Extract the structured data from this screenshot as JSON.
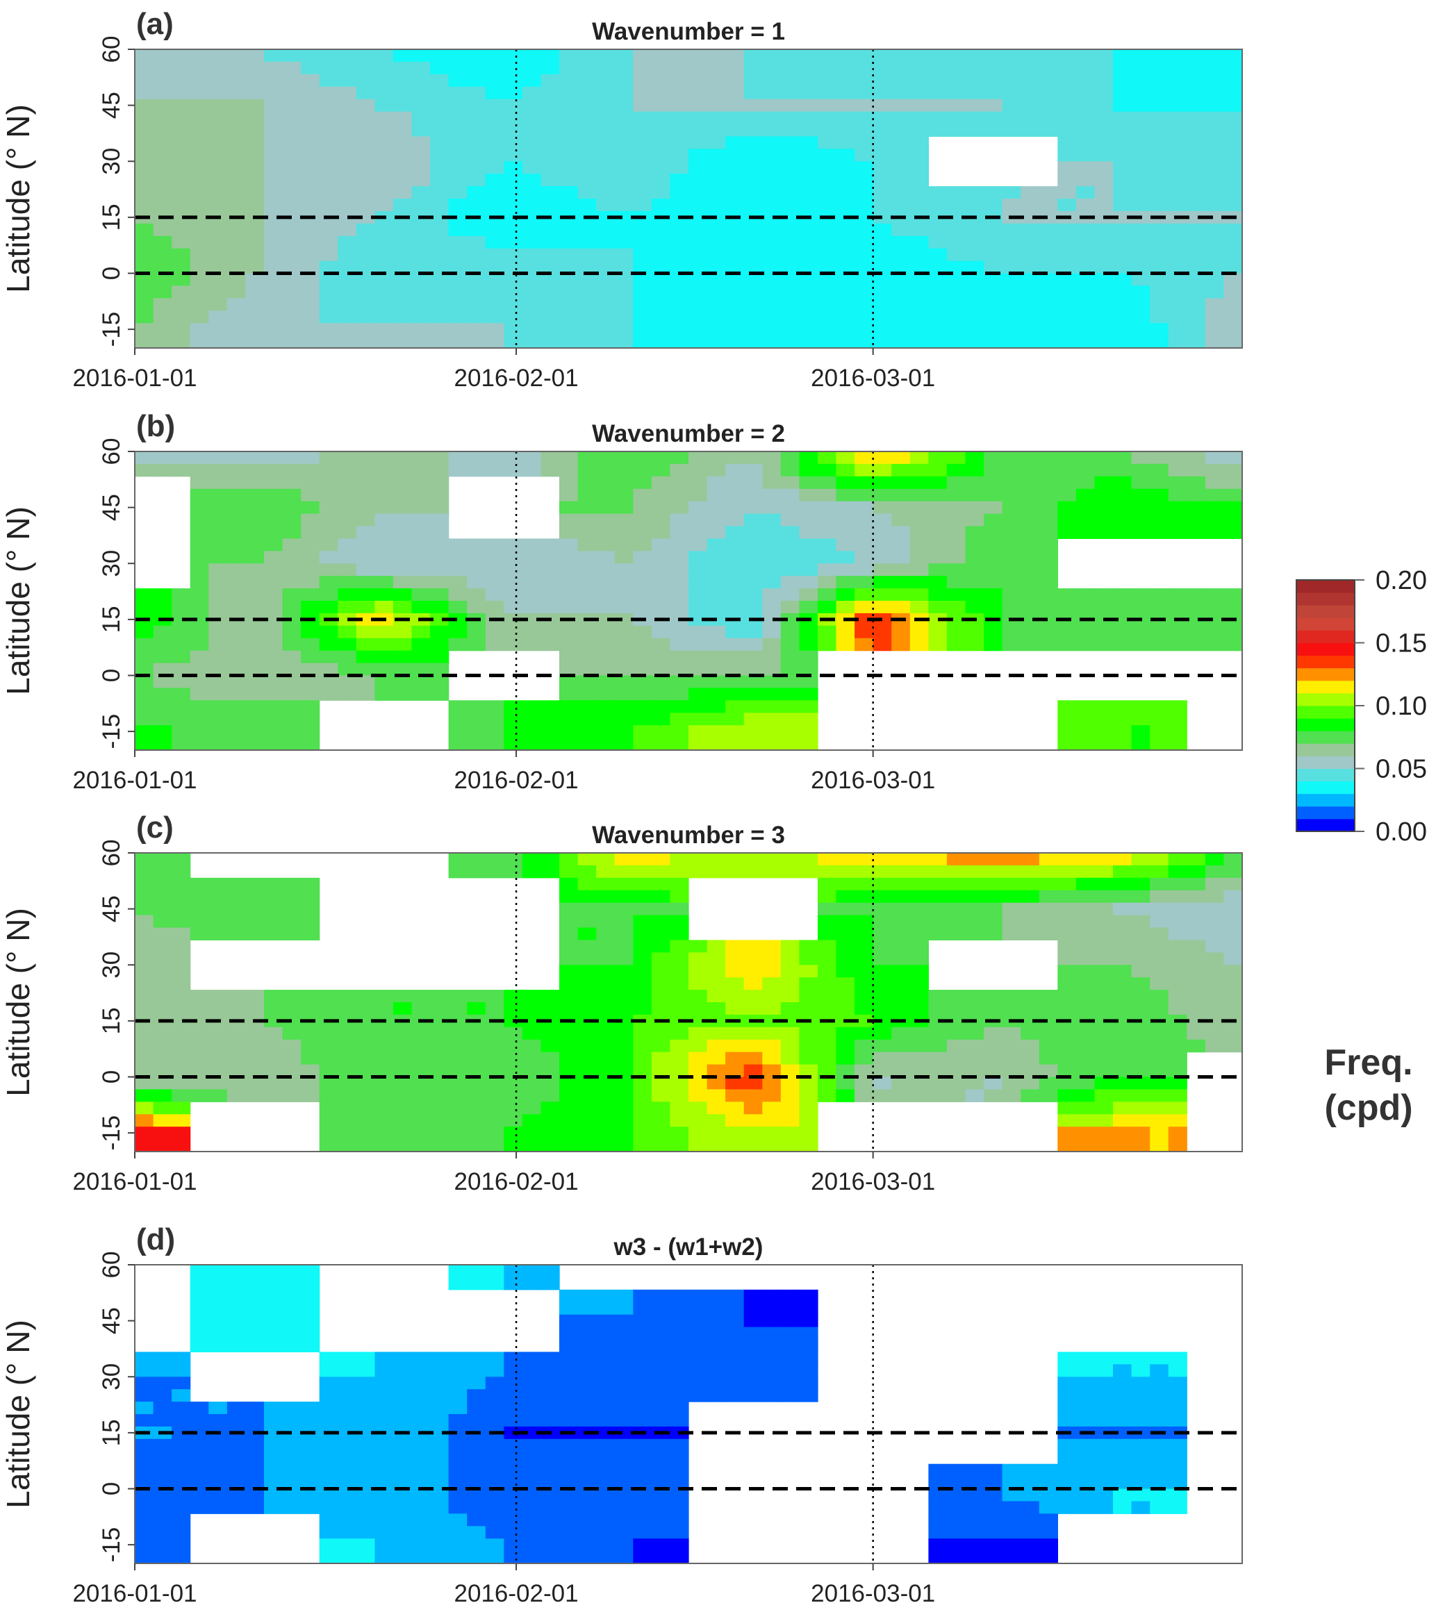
{
  "colorbar": {
    "title_line1": "Freq.",
    "title_line2": "(cpd)",
    "ticks": [
      "0.00",
      "0.05",
      "0.10",
      "0.15",
      "0.20"
    ],
    "tick_values": [
      0,
      0.05,
      0.1,
      0.15,
      0.2
    ],
    "range": [
      0,
      0.2
    ],
    "colors": [
      "#0000ff",
      "#0060ff",
      "#00b8ff",
      "#10f8f8",
      "#58e0e0",
      "#a0c8c8",
      "#98c898",
      "#50e050",
      "#00ff00",
      "#50ff00",
      "#a8ff00",
      "#ffee00",
      "#ff9000",
      "#ff3800",
      "#f81010",
      "#e02820",
      "#d04535",
      "#c04538",
      "#b03530",
      "#a02828"
    ]
  },
  "chart_data": [
    {
      "type": "heatmap",
      "letter": "(a)",
      "title": "Wavenumber = 1",
      "ylabel": "Latitude (° N)",
      "xlabel": "",
      "xticks": [
        "2016-01-01",
        "2016-02-01",
        "2016-03-01"
      ],
      "xtick_days": [
        0,
        31,
        60
      ],
      "xlim_days": [
        0,
        90
      ],
      "yticks": [
        "60",
        "45",
        "30",
        "15",
        "0",
        "-15"
      ],
      "ytick_values": [
        60,
        45,
        30,
        15,
        0,
        -15
      ],
      "ylim": [
        -20,
        60
      ],
      "dashed_lat_lines": [
        15,
        0
      ],
      "dotted_day_lines": [
        31,
        60
      ],
      "grid_lat": [
        60,
        45,
        30,
        15,
        0,
        -15
      ],
      "grid_day": [
        0,
        10,
        20,
        30,
        40,
        50,
        60,
        70,
        80,
        90
      ],
      "values": [
        [
          0.05,
          0.05,
          0.04,
          0.03,
          0.05,
          0.05,
          0.04,
          0.05,
          0.04,
          0.03
        ],
        [
          0.06,
          0.06,
          0.05,
          0.04,
          0.05,
          0.05,
          0.05,
          0.05,
          0.04,
          0.04
        ],
        [
          0.06,
          0.06,
          0.06,
          0.04,
          0.05,
          0.03,
          0.04,
          null,
          0.05,
          0.04
        ],
        [
          0.07,
          0.06,
          0.05,
          0.03,
          0.04,
          0.03,
          0.04,
          0.05,
          0.05,
          0.05
        ],
        [
          0.08,
          0.06,
          0.04,
          0.05,
          0.04,
          0.04,
          0.03,
          0.04,
          0.04,
          0.05
        ],
        [
          0.07,
          0.05,
          0.05,
          0.05,
          0.04,
          0.03,
          0.03,
          0.04,
          0.03,
          0.06
        ]
      ]
    },
    {
      "type": "heatmap",
      "letter": "(b)",
      "title": "Wavenumber = 2",
      "ylabel": "Latitude (° N)",
      "xlabel": "",
      "xticks": [
        "2016-01-01",
        "2016-02-01",
        "2016-03-01"
      ],
      "xtick_days": [
        0,
        31,
        60
      ],
      "xlim_days": [
        0,
        90
      ],
      "yticks": [
        "60",
        "45",
        "30",
        "15",
        "0",
        "-15"
      ],
      "ytick_values": [
        60,
        45,
        30,
        15,
        0,
        -15
      ],
      "ylim": [
        -20,
        60
      ],
      "dashed_lat_lines": [
        15,
        0
      ],
      "dotted_day_lines": [
        31,
        60
      ],
      "grid_lat": [
        60,
        45,
        30,
        15,
        0,
        -15
      ],
      "grid_day": [
        0,
        10,
        20,
        30,
        40,
        50,
        60,
        70,
        80,
        90
      ],
      "values": [
        [
          0.06,
          0.05,
          0.07,
          0.05,
          0.08,
          0.06,
          0.13,
          0.08,
          0.07,
          0.05
        ],
        [
          null,
          0.08,
          0.06,
          null,
          0.07,
          0.05,
          0.06,
          0.07,
          0.09,
          0.08
        ],
        [
          null,
          0.07,
          0.05,
          0.05,
          0.06,
          0.04,
          0.05,
          0.08,
          null,
          null
        ],
        [
          0.09,
          0.06,
          0.12,
          0.06,
          0.06,
          0.04,
          0.14,
          0.08,
          0.07,
          0.08
        ],
        [
          0.07,
          0.06,
          0.07,
          null,
          0.07,
          0.07,
          null,
          null,
          null,
          null
        ],
        [
          0.08,
          0.08,
          null,
          0.08,
          0.09,
          0.11,
          null,
          null,
          0.09,
          null
        ]
      ]
    },
    {
      "type": "heatmap",
      "letter": "(c)",
      "title": "Wavenumber = 3",
      "ylabel": "Latitude (° N)",
      "xlabel": "",
      "xticks": [
        "2016-01-01",
        "2016-02-01",
        "2016-03-01"
      ],
      "xtick_days": [
        0,
        31,
        60
      ],
      "xlim_days": [
        0,
        90
      ],
      "yticks": [
        "60",
        "45",
        "30",
        "15",
        "0",
        "-15"
      ],
      "ytick_values": [
        60,
        45,
        30,
        15,
        0,
        -15
      ],
      "ylim": [
        -20,
        60
      ],
      "dashed_lat_lines": [
        15,
        0
      ],
      "dotted_day_lines": [
        31,
        60
      ],
      "grid_lat": [
        60,
        45,
        30,
        15,
        0,
        -15
      ],
      "grid_day": [
        0,
        10,
        20,
        30,
        40,
        50,
        60,
        70,
        80,
        90
      ],
      "values": [
        [
          0.08,
          null,
          null,
          0.07,
          0.12,
          0.1,
          0.12,
          0.13,
          0.12,
          0.08
        ],
        [
          0.07,
          0.08,
          null,
          null,
          0.08,
          null,
          0.08,
          0.07,
          0.06,
          0.05
        ],
        [
          0.06,
          null,
          null,
          null,
          0.08,
          0.12,
          0.08,
          null,
          0.07,
          0.06
        ],
        [
          0.06,
          0.07,
          0.08,
          0.08,
          0.09,
          0.1,
          0.09,
          0.07,
          0.08,
          0.06
        ],
        [
          0.06,
          0.06,
          0.08,
          0.07,
          0.09,
          0.14,
          0.06,
          0.06,
          0.08,
          null
        ],
        [
          0.14,
          null,
          0.07,
          0.08,
          0.09,
          0.11,
          null,
          null,
          0.12,
          null
        ]
      ]
    },
    {
      "type": "heatmap",
      "letter": "(d)",
      "title": "w3 - (w1+w2)",
      "ylabel": "Latitude (° N)",
      "xlabel": "",
      "xticks": [
        "2016-01-01",
        "2016-02-01",
        "2016-03-01"
      ],
      "xtick_days": [
        0,
        31,
        60
      ],
      "xlim_days": [
        0,
        90
      ],
      "yticks": [
        "60",
        "45",
        "30",
        "15",
        "0",
        "-15"
      ],
      "ytick_values": [
        60,
        45,
        30,
        15,
        0,
        -15
      ],
      "ylim": [
        -20,
        60
      ],
      "dashed_lat_lines": [
        15,
        0
      ],
      "dotted_day_lines": [
        31,
        60
      ],
      "grid_lat": [
        60,
        45,
        30,
        15,
        0,
        -15
      ],
      "grid_day": [
        0,
        10,
        20,
        30,
        40,
        50,
        60,
        70,
        80,
        90
      ],
      "values": [
        [
          null,
          0.03,
          null,
          0.03,
          null,
          null,
          null,
          null,
          null,
          null
        ],
        [
          null,
          0.04,
          null,
          null,
          0.02,
          0.01,
          null,
          null,
          null,
          null
        ],
        [
          0.02,
          null,
          0.03,
          0.02,
          0.01,
          0.02,
          null,
          null,
          0.03,
          null
        ],
        [
          0.02,
          0.02,
          0.03,
          0.01,
          0.01,
          null,
          null,
          null,
          0.02,
          null
        ],
        [
          0.01,
          0.02,
          0.03,
          0.01,
          0.02,
          null,
          null,
          0.02,
          0.03,
          null
        ],
        [
          0.02,
          null,
          0.03,
          0.02,
          0.01,
          null,
          null,
          0.01,
          null,
          null
        ]
      ]
    }
  ]
}
